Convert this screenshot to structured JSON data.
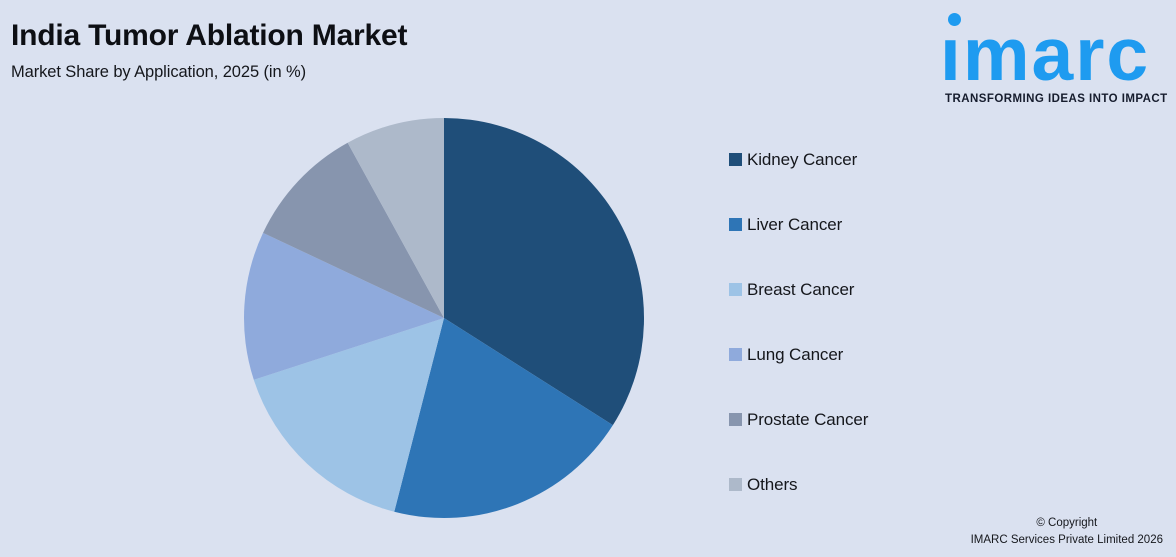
{
  "header": {
    "title": "India Tumor Ablation Market",
    "subtitle": "Market Share by Application, 2025 (in %)"
  },
  "logo": {
    "wordmark": "imarc",
    "tagline": "TRANSFORMING IDEAS INTO IMPACT",
    "brand_blue": "#1e9bf0",
    "tagline_color": "#161c2d"
  },
  "chart_data": {
    "type": "pie",
    "title": "India Tumor Ablation Market",
    "subtitle": "Market Share by Application, 2025 (in %)",
    "categories": [
      "Kidney Cancer",
      "Liver Cancer",
      "Breast Cancer",
      "Lung Cancer",
      "Prostate Cancer",
      "Others"
    ],
    "values": [
      34,
      20,
      16,
      12,
      10,
      8
    ],
    "unit": "%",
    "values_estimated_from_angles": true,
    "data_labels_shown": false,
    "colors": [
      "#1f4e79",
      "#2e75b6",
      "#9dc3e6",
      "#8faadc",
      "#8795ae",
      "#adb9ca"
    ],
    "start_angle_deg": 0,
    "direction": "clockwise",
    "legend_position": "right"
  },
  "legend": {
    "items": [
      {
        "label": "Kidney Cancer",
        "color": "#1f4e79"
      },
      {
        "label": "Liver Cancer",
        "color": "#2e75b6"
      },
      {
        "label": "Breast Cancer",
        "color": "#9dc3e6"
      },
      {
        "label": "Lung Cancer",
        "color": "#8faadc"
      },
      {
        "label": "Prostate Cancer",
        "color": "#8795ae"
      },
      {
        "label": "Others",
        "color": "#adb9ca"
      }
    ]
  },
  "footer": {
    "copyright_line1": "© Copyright",
    "copyright_line2": "IMARC Services Private Limited 2026"
  },
  "colors": {
    "background": "#dae1f0",
    "title_text": "#0d0f14",
    "legend_text": "#15171c"
  }
}
